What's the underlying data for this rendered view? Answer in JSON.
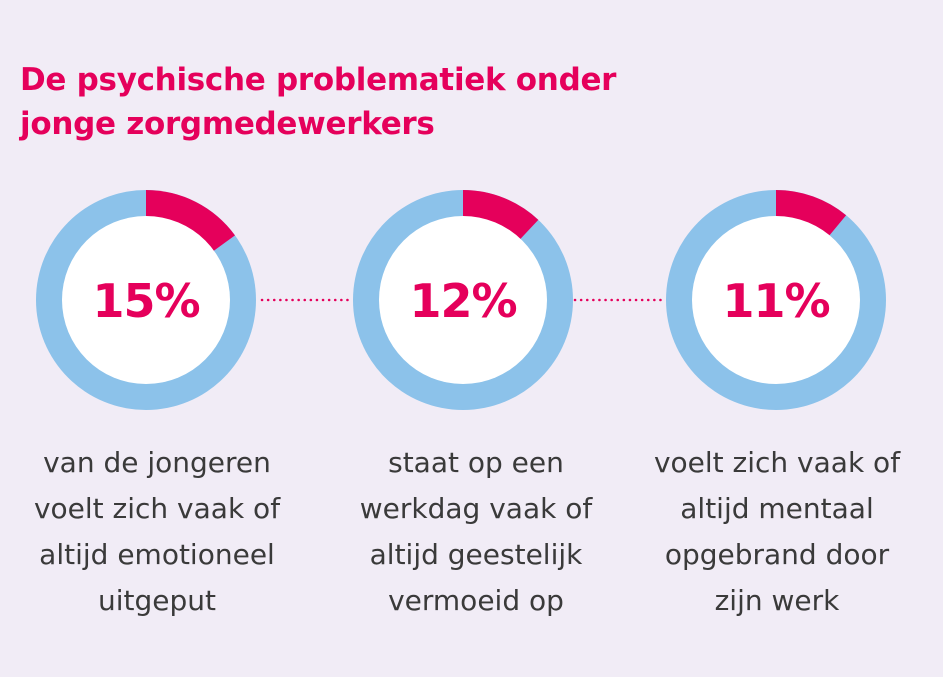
{
  "title_lines": [
    "De psychische problematiek onder",
    "jonge zorgmedewerkers"
  ],
  "colors": {
    "background": "#f1ecf6",
    "accent": "#e5005b",
    "ring_rest": "#8cc2ea",
    "center": "#ffffff",
    "caption_text": "#3a3a3a"
  },
  "chart_data": [
    {
      "type": "pie",
      "style": "donut",
      "value": 15,
      "label": "15%",
      "caption_lines": [
        "van de jongeren",
        "voelt zich vaak of",
        "altijd emotioneel",
        "uitgeput"
      ]
    },
    {
      "type": "pie",
      "style": "donut",
      "value": 12,
      "label": "12%",
      "caption_lines": [
        "staat op een",
        "werkdag vaak of",
        "altijd geestelijk",
        "vermoeid op"
      ]
    },
    {
      "type": "pie",
      "style": "donut",
      "value": 11,
      "label": "11%",
      "caption_lines": [
        "voelt zich vaak of",
        "altijd mentaal",
        "opgebrand door",
        "zijn werk"
      ]
    }
  ]
}
